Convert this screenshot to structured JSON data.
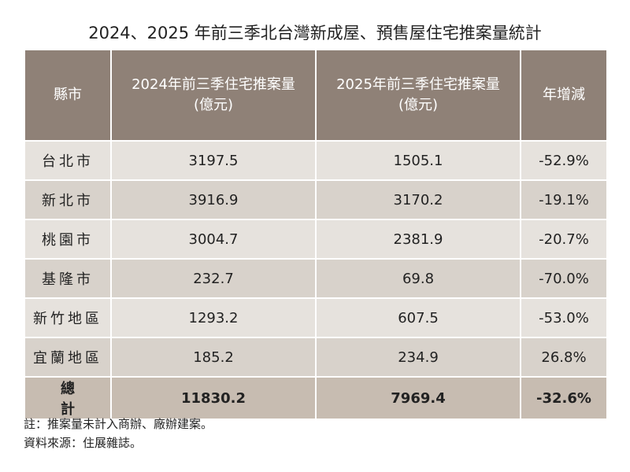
{
  "title": "2024、2025 年前三季北台灣新成屋、預售屋住宅推案量統計",
  "table": {
    "header": [
      [
        "縣市"
      ],
      [
        "2024年前三季住宅推案量",
        "(億元)"
      ],
      [
        "2025年前三季住宅推案量",
        "(億元)"
      ],
      [
        "年增減"
      ]
    ],
    "rows": [
      [
        "台北市",
        "3197.5",
        "1505.1",
        "-52.9%"
      ],
      [
        "新北市",
        "3916.9",
        "3170.2",
        "-19.1%"
      ],
      [
        "桃園市",
        "3004.7",
        "2381.9",
        "-20.7%"
      ],
      [
        "基隆市",
        "232.7",
        "69.8",
        "-70.0%"
      ],
      [
        "新竹地區",
        "1293.2",
        "607.5",
        "-53.0%"
      ],
      [
        "宜蘭地區",
        "185.2",
        "234.9",
        "26.8%"
      ]
    ],
    "total": [
      "總計",
      "11830.2",
      "7969.4",
      "-32.6%"
    ]
  },
  "notes": [
    "註：推案量未計入商辦、廠辦建案。",
    "資料來源：住展雜誌。"
  ]
}
